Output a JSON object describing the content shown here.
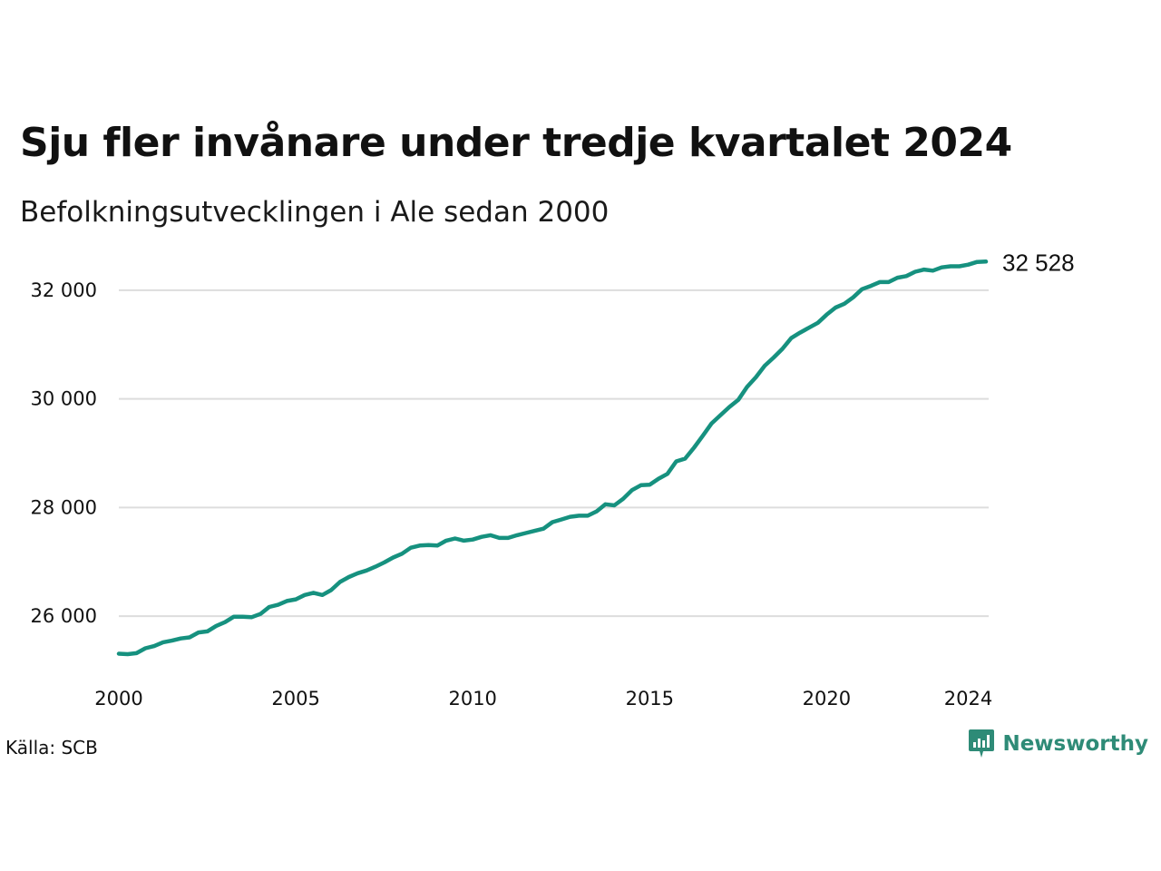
{
  "header": {
    "title": "Sju fler invånare under tredje kvartalet 2024",
    "subtitle": "Befolkningsutvecklingen i Ale sedan 2000"
  },
  "footer": {
    "source": "Källa: SCB",
    "brand": "Newsworthy",
    "brand_color": "#2e8b77"
  },
  "colors": {
    "line": "#16917f",
    "grid": "#dddddd",
    "text": "#111111"
  },
  "chart_data": {
    "type": "line",
    "x_ticks": [
      "2000",
      "2005",
      "2010",
      "2015",
      "2020",
      "2024"
    ],
    "y_ticks": [
      "26 000",
      "28 000",
      "30 000",
      "32 000"
    ],
    "y_tick_values": [
      26000,
      28000,
      30000,
      32000
    ],
    "xlim": [
      2000.0,
      2024.5
    ],
    "ylim": [
      24900,
      33000
    ],
    "grid": "horizontal",
    "end_label": "32 528",
    "series": [
      {
        "x": [
          2000.0,
          2000.25,
          2000.5,
          2000.75,
          2001.0,
          2001.25,
          2001.5,
          2001.75,
          2002.0,
          2002.25,
          2002.5,
          2002.75,
          2003.0,
          2003.25,
          2003.5,
          2003.75,
          2004.0,
          2004.25,
          2004.5,
          2004.75,
          2005.0,
          2005.25,
          2005.5,
          2005.75,
          2006.0,
          2006.25,
          2006.5,
          2006.75,
          2007.0,
          2007.25,
          2007.5,
          2007.75,
          2008.0,
          2008.25,
          2008.5,
          2008.75,
          2009.0,
          2009.25,
          2009.5,
          2009.75,
          2010.0,
          2010.25,
          2010.5,
          2010.75,
          2011.0,
          2011.25,
          2011.5,
          2011.75,
          2012.0,
          2012.25,
          2012.5,
          2012.75,
          2013.0,
          2013.25,
          2013.5,
          2013.75,
          2014.0,
          2014.25,
          2014.5,
          2014.75,
          2015.0,
          2015.25,
          2015.5,
          2015.75,
          2016.0,
          2016.25,
          2016.5,
          2016.75,
          2017.0,
          2017.25,
          2017.5,
          2017.75,
          2018.0,
          2018.25,
          2018.5,
          2018.75,
          2019.0,
          2019.25,
          2019.5,
          2019.75,
          2020.0,
          2020.25,
          2020.5,
          2020.75,
          2021.0,
          2021.25,
          2021.5,
          2021.75,
          2022.0,
          2022.25,
          2022.5,
          2022.75,
          2023.0,
          2023.25,
          2023.5,
          2023.75,
          2024.0,
          2024.25,
          2024.5
        ],
        "values": [
          25310,
          25300,
          25320,
          25410,
          25450,
          25520,
          25550,
          25590,
          25610,
          25700,
          25720,
          25820,
          25890,
          25990,
          25990,
          25980,
          26040,
          26170,
          26210,
          26280,
          26310,
          26390,
          26430,
          26390,
          26480,
          26630,
          26720,
          26790,
          26840,
          26910,
          26990,
          27080,
          27150,
          27260,
          27300,
          27310,
          27300,
          27390,
          27430,
          27390,
          27410,
          27460,
          27490,
          27440,
          27440,
          27490,
          27530,
          27570,
          27610,
          27730,
          27780,
          27830,
          27850,
          27850,
          27930,
          28060,
          28040,
          28160,
          28320,
          28410,
          28420,
          28530,
          28620,
          28850,
          28900,
          29100,
          29320,
          29550,
          29700,
          29850,
          29980,
          30220,
          30400,
          30610,
          30760,
          30920,
          31120,
          31220,
          31310,
          31400,
          31550,
          31680,
          31750,
          31870,
          32020,
          32080,
          32150,
          32150,
          32230,
          32260,
          32340,
          32380,
          32360,
          32420,
          32440,
          32440,
          32470,
          32520,
          32528
        ]
      }
    ]
  }
}
